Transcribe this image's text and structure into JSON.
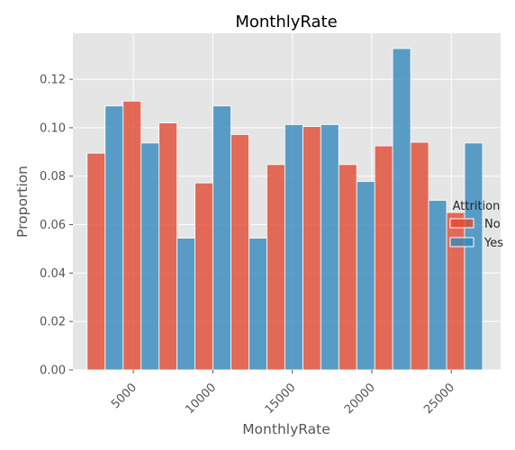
{
  "chart_data": {
    "type": "bar",
    "title": "MonthlyRate",
    "xlabel": "MonthlyRate",
    "ylabel": "Proportion",
    "xlim": [
      1200,
      28100
    ],
    "ylim": [
      0,
      0.139
    ],
    "grid": true,
    "xticks": [
      5000,
      10000,
      15000,
      20000,
      25000
    ],
    "yticks": [
      0.0,
      0.02,
      0.04,
      0.06,
      0.08,
      0.1,
      0.12
    ],
    "bin_edges": [
      2094,
      4355,
      6616,
      8877,
      11138,
      13399,
      15660,
      17921,
      20182,
      22443,
      24704,
      26965
    ],
    "legend": {
      "title": "Attrition",
      "placement": "center-right",
      "entries": [
        "No",
        "Yes"
      ]
    },
    "series": [
      {
        "name": "No",
        "color": "#E24A33",
        "values": [
          0.0895,
          0.111,
          0.102,
          0.0772,
          0.0972,
          0.0848,
          0.1005,
          0.0848,
          0.0925,
          0.094,
          0.065
        ]
      },
      {
        "name": "Yes",
        "color": "#348ABD",
        "values": [
          0.109,
          0.0937,
          0.0544,
          0.109,
          0.0544,
          0.1013,
          0.1013,
          0.0778,
          0.1327,
          0.07,
          0.0937
        ]
      }
    ]
  }
}
